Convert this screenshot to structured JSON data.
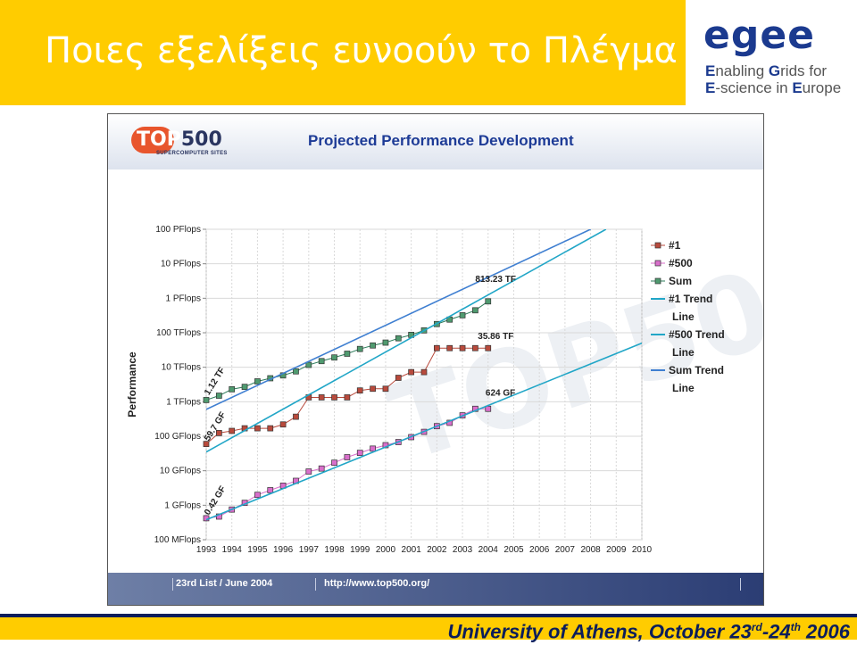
{
  "slide": {
    "title": "Ποιες εξελίξεις ευνοούν το Πλέγμα",
    "footer_main": "University of Athens, October 23",
    "footer_sup1": "rd",
    "footer_mid": "-24",
    "footer_sup2": "th",
    "footer_year": " 2006",
    "colors": {
      "band": "#ffcc00",
      "navy": "#0b1d5b",
      "egee_blue": "#1b3a8f"
    }
  },
  "logo": {
    "word": "egee",
    "line1_hl": "E",
    "line1_a": "nabling ",
    "line1_hl2": "G",
    "line1_b": "rids for",
    "line2_hl": "E",
    "line2_a": "-science in ",
    "line2_hl2": "E",
    "line2_b": "urope"
  },
  "top500": {
    "logo_prefix": "TOP",
    "logo_num": "500",
    "logo_sub": "SUPERCOMPUTER SITES",
    "footer_list": "23rd List / June 2004",
    "footer_url": "http://www.top500.org/"
  },
  "chart_data": {
    "type": "line",
    "title": "Projected Performance Development",
    "ylabel": "Performance",
    "xlabel": "",
    "x_ticks": [
      "1993",
      "1994",
      "1995",
      "1996",
      "1997",
      "1998",
      "1999",
      "2000",
      "2001",
      "2002",
      "2003",
      "2004",
      "2005",
      "2006",
      "2007",
      "2008",
      "2009",
      "2010"
    ],
    "y_scale": "log",
    "y_ticks": [
      "100 MFlops",
      "1 GFlops",
      "10 GFlops",
      "100 GFlops",
      "1 TFlops",
      "10 TFlops",
      "100 TFlops",
      "1 PFlops",
      "10 PFlops",
      "100 PFlops"
    ],
    "ylim_log10": [
      -1,
      8
    ],
    "xlim": [
      1993,
      2010
    ],
    "grid": true,
    "legend_position": "right",
    "series": [
      {
        "name": "#1",
        "color": "#b94a3c",
        "marker_fill": "#b94a3c",
        "x": [
          1993,
          1993.5,
          1994,
          1994.5,
          1995,
          1995.5,
          1996,
          1996.5,
          1997,
          1997.5,
          1998,
          1998.5,
          1999,
          1999.5,
          2000,
          2000.5,
          2001,
          2001.5,
          2002,
          2002.5,
          2003,
          2003.5,
          2004
        ],
        "y": [
          59.7,
          124,
          143,
          170,
          170,
          170,
          220,
          368,
          1338,
          1338,
          1338,
          1338,
          2121,
          2379,
          2379,
          4938,
          7226,
          7226,
          35860,
          35860,
          35860,
          35860,
          35860
        ]
      },
      {
        "name": "#500",
        "color": "#d96ecb",
        "marker_fill": "#d96ecb",
        "x": [
          1993,
          1993.5,
          1994,
          1994.5,
          1995,
          1995.5,
          1996,
          1996.5,
          1997,
          1997.5,
          1998,
          1998.5,
          1999,
          1999.5,
          2000,
          2000.5,
          2001,
          2001.5,
          2002,
          2002.5,
          2003,
          2003.5,
          2004
        ],
        "y": [
          0.42,
          0.47,
          0.75,
          1.17,
          2.0,
          2.73,
          3.7,
          5.1,
          9.5,
          11.6,
          17.1,
          24.7,
          33.0,
          43.8,
          55.1,
          67.8,
          94.3,
          134,
          196,
          245,
          403,
          624,
          624
        ]
      },
      {
        "name": "Sum",
        "color": "#2e7d5b",
        "marker_fill": "#4f9a6f",
        "x": [
          1993,
          1993.5,
          1994,
          1994.5,
          1995,
          1995.5,
          1996,
          1996.5,
          1997,
          1997.5,
          1998,
          1998.5,
          1999,
          1999.5,
          2000,
          2000.5,
          2001,
          2001.5,
          2002,
          2002.5,
          2003,
          2003.5,
          2004
        ],
        "y": [
          1120,
          1500,
          2300,
          2700,
          3900,
          4800,
          5800,
          7600,
          11700,
          15100,
          19200,
          24700,
          33900,
          42800,
          51800,
          69200,
          87000,
          117000,
          179000,
          241000,
          321000,
          448000,
          813230
        ]
      },
      {
        "name": "#1 Trend Line",
        "color": "#21a6c7",
        "x": [
          1993,
          2008.6
        ],
        "y": [
          35.0,
          100000000
        ]
      },
      {
        "name": "#500 Trend Line",
        "color": "#21a6c7",
        "x": [
          1993,
          2010
        ],
        "y": [
          0.38,
          50000
        ]
      },
      {
        "name": "Sum Trend Line",
        "color": "#3f7fd1",
        "x": [
          1993,
          2008
        ],
        "y": [
          600,
          100000000
        ]
      }
    ],
    "legend_labels": [
      "#1",
      "#500",
      "Sum",
      "#1 Trend",
      "Line",
      "#500 Trend",
      "Line",
      "Sum Trend",
      "Line"
    ],
    "annotations": [
      {
        "text": "813.23 TF",
        "x": 2003.5,
        "y": 3000000
      },
      {
        "text": "35.86 TF",
        "x": 2003.6,
        "y": 65000
      },
      {
        "text": "624 GF",
        "x": 2003.9,
        "y": 1500
      },
      {
        "text": "1.12 TF",
        "x": 1993.1,
        "y": 1500,
        "angle": -58
      },
      {
        "text": "59.7 GF",
        "x": 1993.1,
        "y": 70,
        "angle": -58
      },
      {
        "text": "0.42 GF",
        "x": 1993.1,
        "y": 0.5,
        "angle": -58
      }
    ],
    "watermark": "TOP500"
  }
}
